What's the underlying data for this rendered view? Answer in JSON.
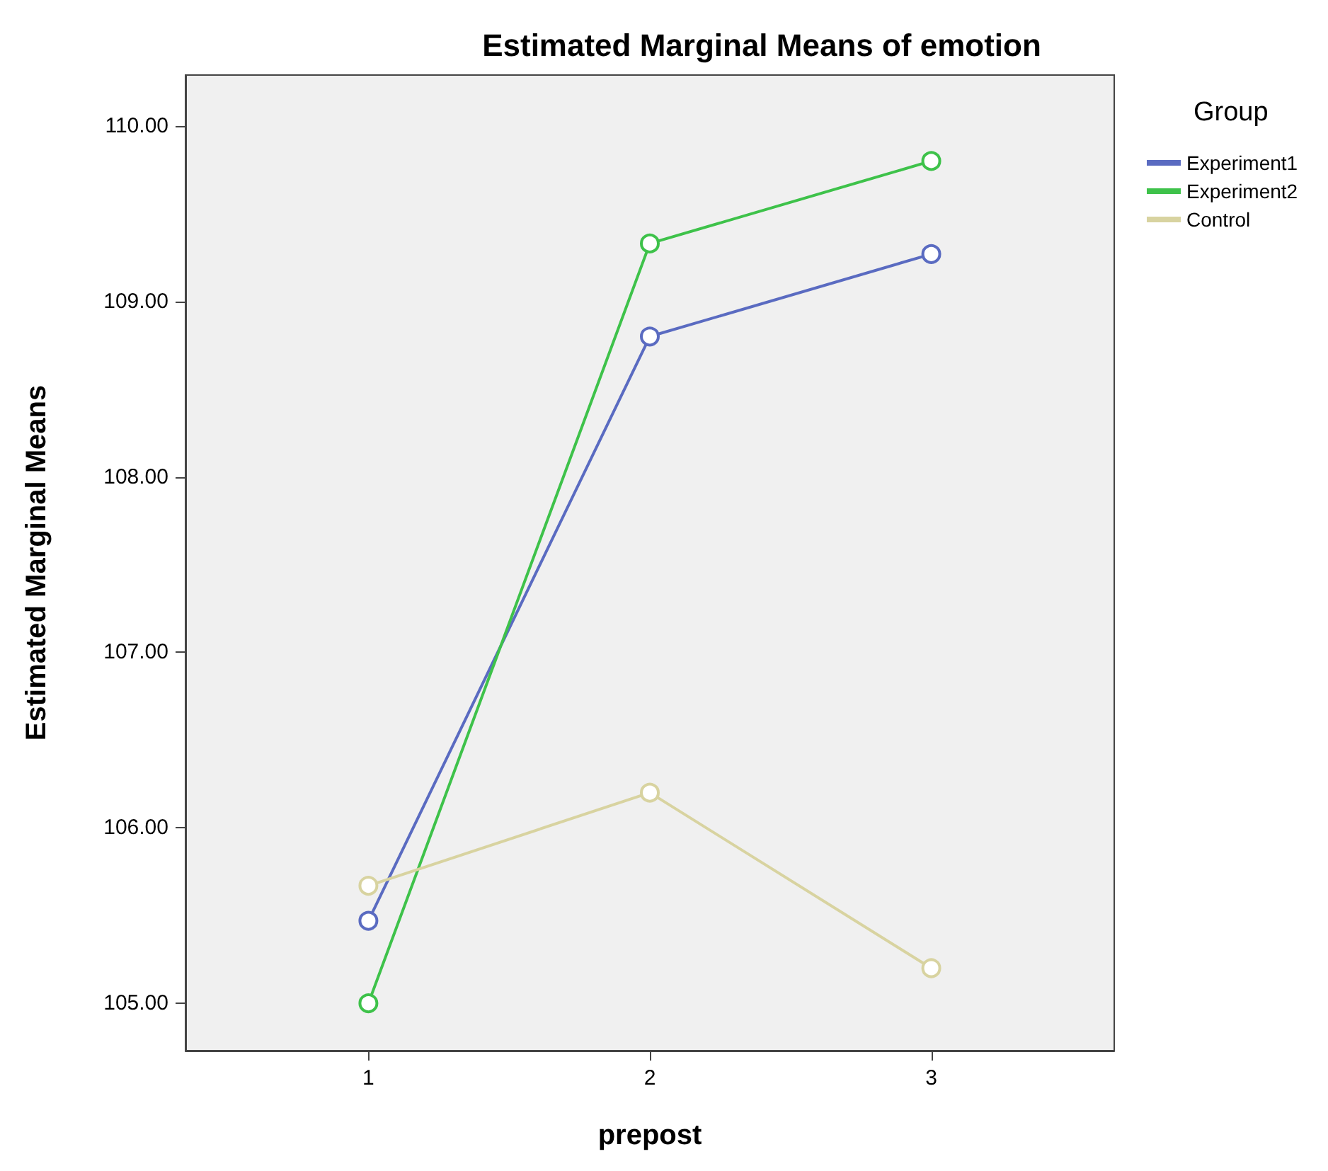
{
  "chart_data": {
    "type": "line",
    "title": "Estimated Marginal Means of emotion",
    "xlabel": "prepost",
    "ylabel": "Estimated Marginal Means",
    "legend_title": "Group",
    "x": [
      1,
      2,
      3
    ],
    "xlim": [
      0.35,
      3.65
    ],
    "xticks": [
      1,
      2,
      3
    ],
    "ylim": [
      104.73,
      110.29
    ],
    "yticks": [
      {
        "value": 105,
        "label": "105.00"
      },
      {
        "value": 106,
        "label": "106.00"
      },
      {
        "value": 107,
        "label": "107.00"
      },
      {
        "value": 108,
        "label": "108.00"
      },
      {
        "value": 109,
        "label": "109.00"
      },
      {
        "value": 110,
        "label": "110.00"
      }
    ],
    "series": [
      {
        "name": "Experiment1",
        "color": "#5a6bc1",
        "values": [
          105.47,
          108.8,
          109.27
        ]
      },
      {
        "name": "Experiment2",
        "color": "#3ec24a",
        "values": [
          105.0,
          109.33,
          109.8
        ]
      },
      {
        "name": "Control",
        "color": "#d8d3a0",
        "values": [
          105.67,
          106.2,
          105.2
        ]
      }
    ],
    "marker": "circle",
    "legend": "top right",
    "grid": false
  }
}
